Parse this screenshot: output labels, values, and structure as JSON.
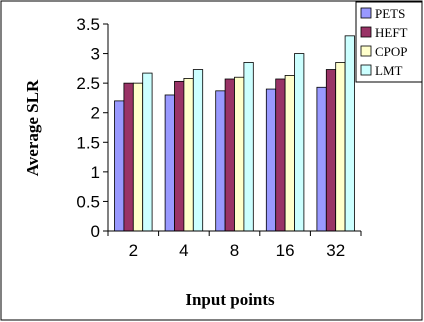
{
  "chart_data": {
    "type": "bar",
    "xlabel": "Input points",
    "ylabel": "Average SLR",
    "categories": [
      "2",
      "4",
      "8",
      "16",
      "32"
    ],
    "ylim": [
      0,
      3.5
    ],
    "yticks": [
      "0",
      "0.5",
      "1",
      "1.5",
      "2",
      "2.5",
      "3",
      "3.5"
    ],
    "grid": false,
    "legend_position": "top-right",
    "series": [
      {
        "name": "PETS",
        "color": "#9999ff",
        "values": [
          2.2,
          2.3,
          2.37,
          2.4,
          2.43
        ]
      },
      {
        "name": "HEFT",
        "color": "#993366",
        "values": [
          2.5,
          2.53,
          2.57,
          2.57,
          2.73
        ]
      },
      {
        "name": "CPOP",
        "color": "#ffffcc",
        "values": [
          2.5,
          2.58,
          2.6,
          2.63,
          2.85
        ]
      },
      {
        "name": "LMT",
        "color": "#ccffff",
        "values": [
          2.67,
          2.73,
          2.85,
          3.0,
          3.3
        ]
      }
    ]
  }
}
